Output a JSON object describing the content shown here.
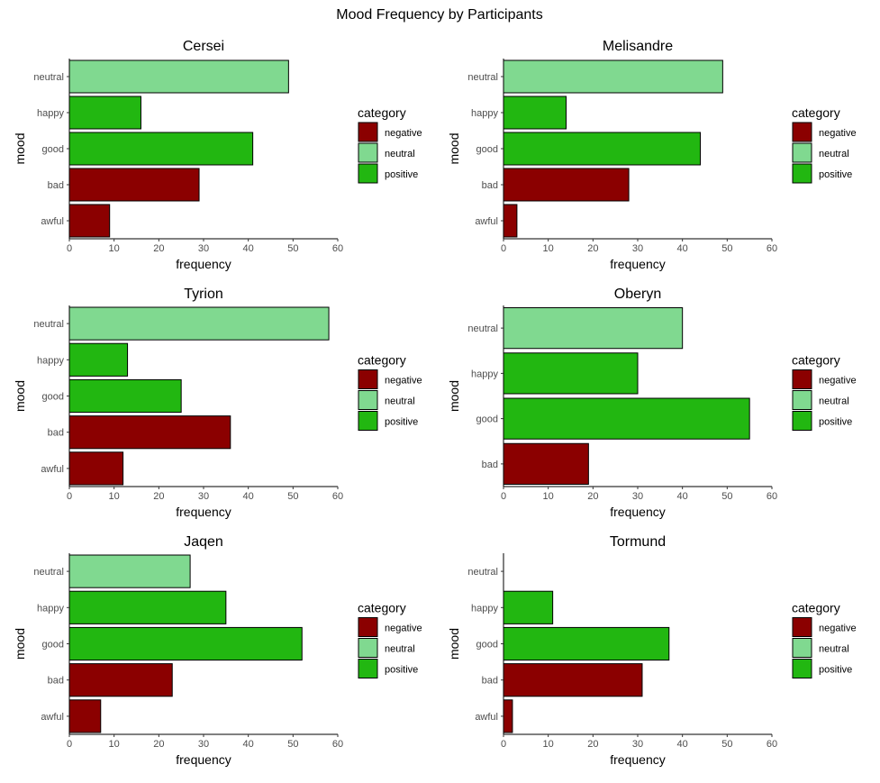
{
  "title": "Mood Frequency by Participants",
  "colors": {
    "negative": "#8B0000",
    "neutral": "#80D990",
    "positive": "#22B711"
  },
  "legend": {
    "title": "category",
    "items": [
      "negative",
      "neutral",
      "positive"
    ]
  },
  "chart_data": [
    {
      "type": "bar",
      "orientation": "horizontal",
      "title": "Cersei",
      "xlabel": "frequency",
      "ylabel": "mood",
      "xlim": [
        0,
        60
      ],
      "xticks": [
        0,
        10,
        20,
        30,
        40,
        50,
        60
      ],
      "categories": [
        "awful",
        "bad",
        "good",
        "happy",
        "neutral"
      ],
      "values": [
        9,
        29,
        41,
        16,
        49
      ],
      "category_group": [
        "negative",
        "negative",
        "positive",
        "positive",
        "neutral"
      ]
    },
    {
      "type": "bar",
      "orientation": "horizontal",
      "title": "Melisandre",
      "xlabel": "frequency",
      "ylabel": "mood",
      "xlim": [
        0,
        60
      ],
      "xticks": [
        0,
        10,
        20,
        30,
        40,
        50,
        60
      ],
      "categories": [
        "awful",
        "bad",
        "good",
        "happy",
        "neutral"
      ],
      "values": [
        3,
        28,
        44,
        14,
        49
      ],
      "category_group": [
        "negative",
        "negative",
        "positive",
        "positive",
        "neutral"
      ]
    },
    {
      "type": "bar",
      "orientation": "horizontal",
      "title": "Tyrion",
      "xlabel": "frequency",
      "ylabel": "mood",
      "xlim": [
        0,
        60
      ],
      "xticks": [
        0,
        10,
        20,
        30,
        40,
        50,
        60
      ],
      "categories": [
        "awful",
        "bad",
        "good",
        "happy",
        "neutral"
      ],
      "values": [
        12,
        36,
        25,
        13,
        58
      ],
      "category_group": [
        "negative",
        "negative",
        "positive",
        "positive",
        "neutral"
      ]
    },
    {
      "type": "bar",
      "orientation": "horizontal",
      "title": "Oberyn",
      "xlabel": "frequency",
      "ylabel": "mood",
      "xlim": [
        0,
        60
      ],
      "xticks": [
        0,
        10,
        20,
        30,
        40,
        50,
        60
      ],
      "categories": [
        "bad",
        "good",
        "happy",
        "neutral"
      ],
      "values": [
        19,
        55,
        30,
        40
      ],
      "category_group": [
        "negative",
        "positive",
        "positive",
        "neutral"
      ]
    },
    {
      "type": "bar",
      "orientation": "horizontal",
      "title": "Jaqen",
      "xlabel": "frequency",
      "ylabel": "mood",
      "xlim": [
        0,
        60
      ],
      "xticks": [
        0,
        10,
        20,
        30,
        40,
        50,
        60
      ],
      "categories": [
        "awful",
        "bad",
        "good",
        "happy",
        "neutral"
      ],
      "values": [
        7,
        23,
        52,
        35,
        27
      ],
      "category_group": [
        "negative",
        "negative",
        "positive",
        "positive",
        "neutral"
      ]
    },
    {
      "type": "bar",
      "orientation": "horizontal",
      "title": "Tormund",
      "xlabel": "frequency",
      "ylabel": "mood",
      "xlim": [
        0,
        60
      ],
      "xticks": [
        0,
        10,
        20,
        30,
        40,
        50,
        60
      ],
      "categories": [
        "awful",
        "bad",
        "good",
        "happy",
        "neutral"
      ],
      "values": [
        2,
        31,
        37,
        11,
        0
      ],
      "category_group": [
        "negative",
        "negative",
        "positive",
        "positive",
        "neutral"
      ]
    }
  ]
}
